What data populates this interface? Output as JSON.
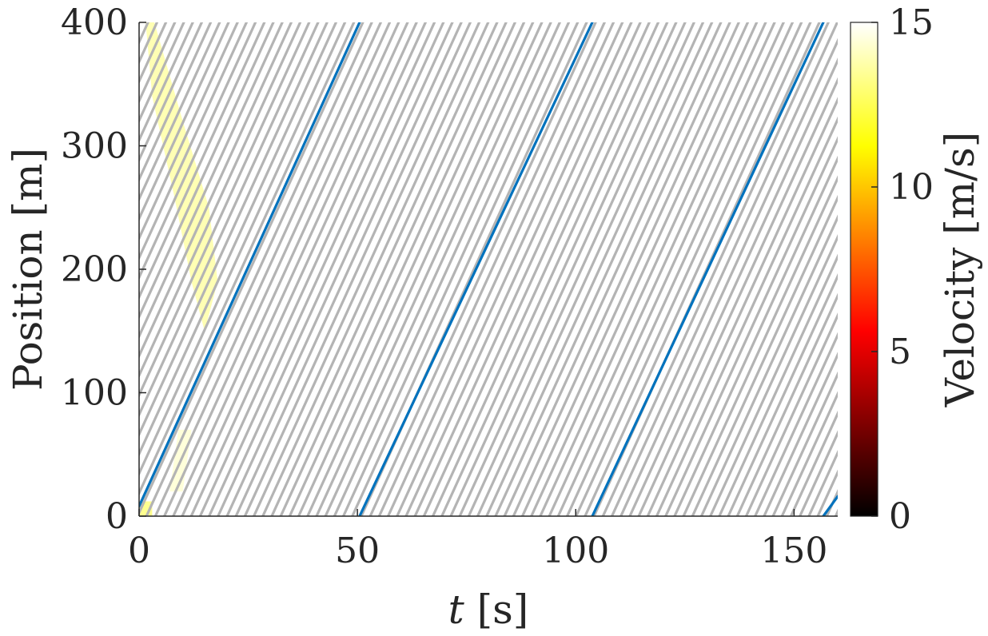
{
  "chart_data": {
    "type": "line",
    "title": "",
    "xlabel_var": "t",
    "xlabel_unit": " [s]",
    "ylabel": "Position [m]",
    "xlim": [
      0,
      160
    ],
    "ylim": [
      0,
      400
    ],
    "x_ticks": [
      {
        "value": 0,
        "label": "0"
      },
      {
        "value": 50,
        "label": "50"
      },
      {
        "value": 100,
        "label": "100"
      },
      {
        "value": 150,
        "label": "150"
      }
    ],
    "y_ticks": [
      {
        "value": 0,
        "label": "0"
      },
      {
        "value": 100,
        "label": "100"
      },
      {
        "value": 200,
        "label": "200"
      },
      {
        "value": 300,
        "label": "300"
      },
      {
        "value": 400,
        "label": "400"
      }
    ],
    "trajectories": {
      "color": "#b4b4b4",
      "vehicle_speed_mps": 7.75,
      "headway_s": 2.05,
      "road_length_m": 400
    },
    "highlighted_vehicle": {
      "color": "#0072bd",
      "segments": [
        {
          "x": [
            0,
            50.5
          ],
          "y": [
            8,
            400
          ]
        },
        {
          "x": [
            50.5,
            103.8
          ],
          "y": [
            0,
            400
          ]
        },
        {
          "x": [
            103.8,
            156.7
          ],
          "y": [
            0,
            400
          ]
        },
        {
          "x": [
            156.7,
            160
          ],
          "y": [
            0,
            16
          ]
        }
      ]
    },
    "high_speed_regions": [
      {
        "polygon": [
          [
            1.5,
            400
          ],
          [
            3.5,
            400
          ],
          [
            10,
            320
          ],
          [
            16,
            250
          ],
          [
            18,
            190
          ],
          [
            15,
            150
          ],
          [
            12,
            190
          ],
          [
            8,
            260
          ],
          [
            3,
            340
          ]
        ],
        "velocity": 13
      },
      {
        "polygon": [
          [
            0,
            0
          ],
          [
            3,
            0
          ],
          [
            3,
            12
          ],
          [
            0,
            12
          ]
        ],
        "velocity": 12
      },
      {
        "polygon": [
          [
            7,
            20
          ],
          [
            10,
            20
          ],
          [
            12,
            70
          ],
          [
            9,
            70
          ]
        ],
        "velocity": 14
      }
    ],
    "colorbar": {
      "label": "Velocity [m/s]",
      "colormap": "hot",
      "range": [
        0,
        15
      ],
      "ticks": [
        {
          "value": 0,
          "label": "0"
        },
        {
          "value": 5,
          "label": "5"
        },
        {
          "value": 10,
          "label": "10"
        },
        {
          "value": 15,
          "label": "15"
        }
      ]
    }
  }
}
